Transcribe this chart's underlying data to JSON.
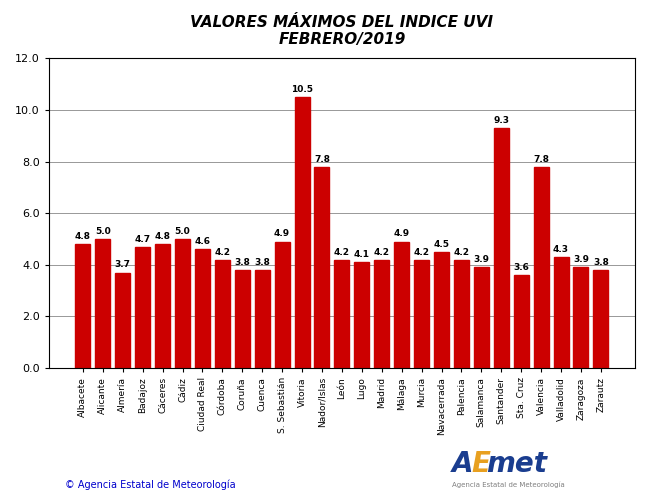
{
  "title_line1": "VALORES MÁXIMOS DEL INDICE UVI",
  "title_line2": "FEBRERO/2019",
  "categories": [
    "Albacete",
    "Alicante",
    "Almería",
    "Badajoz",
    "Cáceres",
    "Cádiz",
    "Ciudad Real",
    "Córdoba",
    "Coruña",
    "Cuenca",
    "S. Sebastián",
    "Vitoria",
    "Nador/Islas",
    "León",
    "Lugo",
    "Madrid",
    "Málaga",
    "Murcia",
    "Navacerrada",
    "Palencia",
    "Salamanca",
    "Santander",
    "Sta. Cruz",
    "Valencia",
    "Valladolid",
    "Zaragoza",
    "Zarautz"
  ],
  "values": [
    4.8,
    5.0,
    3.7,
    4.7,
    4.8,
    5.0,
    4.6,
    4.2,
    3.8,
    3.8,
    4.9,
    10.5,
    7.8,
    4.2,
    4.1,
    4.2,
    4.9,
    4.2,
    4.5,
    4.2,
    3.9,
    9.3,
    3.6,
    7.8,
    4.3,
    3.9,
    3.8
  ],
  "bar_color": "#cc0000",
  "ylim": [
    0.0,
    12.0
  ],
  "ytick_values": [
    0.0,
    2.0,
    4.0,
    6.0,
    8.0,
    10.0,
    12.0
  ],
  "copyright_text": "© Agencia Estatal de Meteorología",
  "background_color": "#ffffff",
  "grid_color": "#888888",
  "label_fontsize": 6.5,
  "value_fontsize": 6.5,
  "title_fontsize": 11
}
